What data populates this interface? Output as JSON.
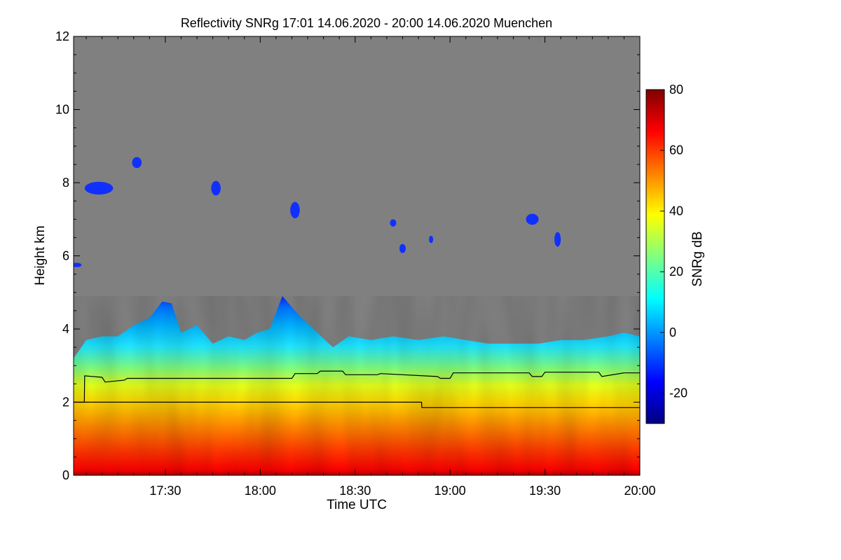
{
  "chart_data": {
    "type": "heatmap",
    "title": "Reflectivity SNRg   17:01 14.06.2020 - 20:00 14.06.2020 Muenchen",
    "xlabel": "Time UTC",
    "ylabel": "Height km",
    "colorbar_label": "SNRg dB",
    "x_range_minutes_utc": [
      1021,
      1200
    ],
    "x_ticks": [
      {
        "label": "17:30",
        "minute": 1050
      },
      {
        "label": "18:00",
        "minute": 1080
      },
      {
        "label": "18:30",
        "minute": 1110
      },
      {
        "label": "19:00",
        "minute": 1140
      },
      {
        "label": "19:30",
        "minute": 1170
      },
      {
        "label": "20:00",
        "minute": 1200
      }
    ],
    "ylim": [
      0,
      12
    ],
    "y_ticks": [
      0,
      2,
      4,
      6,
      8,
      10,
      12
    ],
    "colorbar_range": [
      -30,
      80
    ],
    "colorbar_ticks": [
      -20,
      0,
      20,
      40,
      60,
      80
    ],
    "colormap": [
      "#000080",
      "#0000ff",
      "#0080ff",
      "#00ffff",
      "#80ff80",
      "#ffff00",
      "#ff8000",
      "#ff0000",
      "#800000"
    ],
    "no_signal_color": "#808080",
    "signal_top_km": [
      {
        "minute": 1021,
        "height": 3.2
      },
      {
        "minute": 1025,
        "height": 3.7
      },
      {
        "minute": 1030,
        "height": 3.8
      },
      {
        "minute": 1035,
        "height": 3.8
      },
      {
        "minute": 1040,
        "height": 4.1
      },
      {
        "minute": 1045,
        "height": 4.3
      },
      {
        "minute": 1049,
        "height": 4.75
      },
      {
        "minute": 1052,
        "height": 4.7
      },
      {
        "minute": 1055,
        "height": 3.9
      },
      {
        "minute": 1060,
        "height": 4.1
      },
      {
        "minute": 1065,
        "height": 3.6
      },
      {
        "minute": 1070,
        "height": 3.8
      },
      {
        "minute": 1075,
        "height": 3.7
      },
      {
        "minute": 1079,
        "height": 3.9
      },
      {
        "minute": 1083,
        "height": 4.0
      },
      {
        "minute": 1087,
        "height": 4.9
      },
      {
        "minute": 1092,
        "height": 4.4
      },
      {
        "minute": 1098,
        "height": 3.9
      },
      {
        "minute": 1103,
        "height": 3.5
      },
      {
        "minute": 1108,
        "height": 3.8
      },
      {
        "minute": 1115,
        "height": 3.7
      },
      {
        "minute": 1122,
        "height": 3.8
      },
      {
        "minute": 1130,
        "height": 3.7
      },
      {
        "minute": 1138,
        "height": 3.8
      },
      {
        "minute": 1145,
        "height": 3.7
      },
      {
        "minute": 1152,
        "height": 3.6
      },
      {
        "minute": 1160,
        "height": 3.6
      },
      {
        "minute": 1168,
        "height": 3.6
      },
      {
        "minute": 1175,
        "height": 3.7
      },
      {
        "minute": 1182,
        "height": 3.7
      },
      {
        "minute": 1190,
        "height": 3.8
      },
      {
        "minute": 1195,
        "height": 3.9
      },
      {
        "minute": 1200,
        "height": 3.8
      }
    ],
    "cloud_patches": [
      {
        "minute": 1029,
        "height": 7.85,
        "width_min": 9,
        "height_km": 0.35
      },
      {
        "minute": 1041,
        "height": 8.55,
        "width_min": 3,
        "height_km": 0.3
      },
      {
        "minute": 1066,
        "height": 7.85,
        "width_min": 3,
        "height_km": 0.4
      },
      {
        "minute": 1091,
        "height": 7.25,
        "width_min": 3,
        "height_km": 0.45
      },
      {
        "minute": 1122,
        "height": 6.9,
        "width_min": 2,
        "height_km": 0.2
      },
      {
        "minute": 1125,
        "height": 6.2,
        "width_min": 2,
        "height_km": 0.25
      },
      {
        "minute": 1134,
        "height": 6.45,
        "width_min": 1,
        "height_km": 0.2
      },
      {
        "minute": 1166,
        "height": 7.0,
        "width_min": 4,
        "height_km": 0.3
      },
      {
        "minute": 1174,
        "height": 6.45,
        "width_min": 2,
        "height_km": 0.4
      },
      {
        "minute": 1022,
        "height": 5.75,
        "width_min": 3,
        "height_km": 0.12
      }
    ],
    "series": [
      {
        "x": [
          1021,
          1024.4,
          1024.5,
          1030,
          1031,
          1037,
          1038,
          1060,
          1090,
          1091,
          1098,
          1099,
          1106,
          1107,
          1117,
          1118,
          1136,
          1137,
          1140,
          1141,
          1148,
          1158,
          1165,
          1166,
          1169,
          1170,
          1187,
          1188,
          1195,
          1200
        ],
        "y": [
          2.0,
          2.0,
          2.72,
          2.68,
          2.55,
          2.6,
          2.65,
          2.65,
          2.65,
          2.78,
          2.78,
          2.85,
          2.85,
          2.75,
          2.75,
          2.78,
          2.7,
          2.65,
          2.65,
          2.8,
          2.8,
          2.8,
          2.8,
          2.7,
          2.7,
          2.82,
          2.82,
          2.7,
          2.8,
          2.8
        ]
      },
      {
        "x": [
          1021,
          1074,
          1074.1,
          1131,
          1131.1,
          1200
        ],
        "y": [
          2.0,
          2.0,
          2.0,
          2.0,
          1.85,
          1.85
        ]
      }
    ]
  }
}
